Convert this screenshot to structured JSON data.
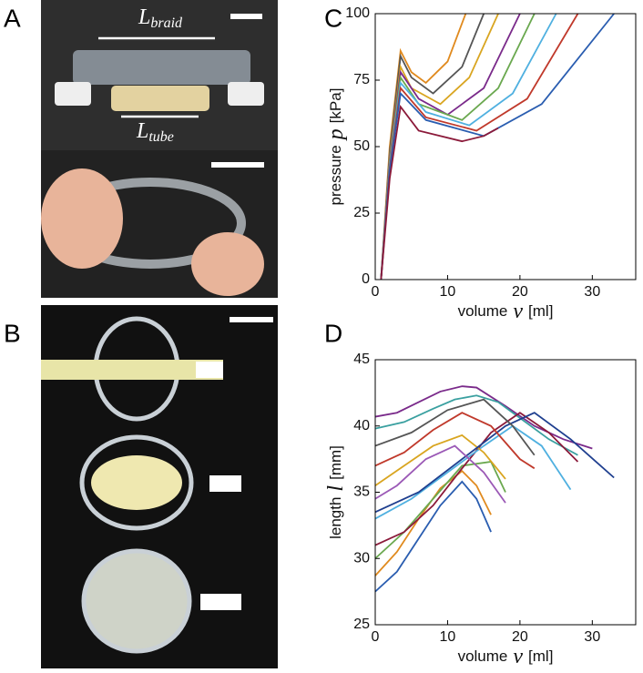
{
  "panel_labels": [
    "A",
    "B",
    "C",
    "D"
  ],
  "photo_labels": [
    {
      "symbol": "L",
      "subscript": "braid"
    },
    {
      "symbol": "L",
      "subscript": "tube"
    }
  ],
  "chart_data": [
    {
      "type": "line",
      "xlim": [
        0,
        36
      ],
      "ylim": [
        0,
        100
      ],
      "xticks": [
        0,
        10,
        20,
        30
      ],
      "yticks": [
        0,
        25,
        50,
        75,
        100
      ],
      "xlabel": {
        "text": "volume",
        "variable": "v",
        "unit": "[ml]"
      },
      "ylabel": {
        "text": "pressure",
        "variable": "p",
        "unit": "[kPa]"
      },
      "series": [
        {
          "color": "#e08a1e",
          "x": [
            0.8,
            2,
            3.5,
            5,
            7,
            10,
            12.5
          ],
          "values": [
            0,
            50,
            86,
            78,
            74,
            82,
            100
          ]
        },
        {
          "color": "#555555",
          "x": [
            0.8,
            2,
            3.5,
            5,
            8,
            12,
            15
          ],
          "values": [
            0,
            48,
            84,
            76,
            70,
            80,
            100
          ]
        },
        {
          "color": "#d9a520",
          "x": [
            0.8,
            2,
            3.5,
            5,
            9,
            13,
            17
          ],
          "values": [
            0,
            46,
            80,
            72,
            66,
            76,
            100
          ]
        },
        {
          "color": "#7a2a8a",
          "x": [
            0.8,
            2,
            3.5,
            6,
            10,
            15,
            20
          ],
          "values": [
            0,
            45,
            78,
            68,
            62,
            72,
            100
          ]
        },
        {
          "color": "#6aa84f",
          "x": [
            0.8,
            2,
            3.5,
            6,
            12,
            17,
            22
          ],
          "values": [
            0,
            44,
            76,
            66,
            60,
            72,
            100
          ]
        },
        {
          "color": "#4fb0e0",
          "x": [
            0.8,
            2,
            3.5,
            7,
            13,
            19,
            25
          ],
          "values": [
            0,
            43,
            74,
            63,
            58,
            70,
            100
          ]
        },
        {
          "color": "#c0392b",
          "x": [
            0.8,
            2,
            3.5,
            7,
            14,
            21,
            28
          ],
          "values": [
            0,
            42,
            72,
            61,
            56,
            68,
            100
          ]
        },
        {
          "color": "#2a5db0",
          "x": [
            0.8,
            2,
            3.5,
            7,
            15,
            23,
            33
          ],
          "values": [
            0,
            41,
            70,
            60,
            54,
            66,
            100
          ]
        },
        {
          "color": "#8b1a3a",
          "x": [
            0.8,
            2,
            3.5,
            6,
            12,
            15,
            17
          ],
          "values": [
            0,
            38,
            65,
            56,
            52,
            54,
            57
          ]
        }
      ]
    },
    {
      "type": "line",
      "xlim": [
        0,
        36
      ],
      "ylim": [
        25,
        45
      ],
      "xticks": [
        0,
        10,
        20,
        30
      ],
      "yticks": [
        25,
        30,
        35,
        40,
        45
      ],
      "xlabel": {
        "text": "volume",
        "variable": "v",
        "unit": "[ml]"
      },
      "ylabel": {
        "text": "length",
        "variable": "l",
        "unit": "[mm]"
      },
      "series": [
        {
          "color": "#7a2a8a",
          "x": [
            0,
            3,
            6,
            9,
            12,
            14,
            18,
            22,
            26,
            30
          ],
          "values": [
            40.7,
            41,
            41.8,
            42.6,
            43,
            42.9,
            41.5,
            40,
            39,
            38.3
          ]
        },
        {
          "color": "#3aa0a0",
          "x": [
            0,
            4,
            8,
            11,
            14,
            17,
            20,
            24,
            28
          ],
          "values": [
            39.8,
            40.3,
            41.3,
            42,
            42.3,
            41.8,
            40.6,
            39,
            37.8
          ]
        },
        {
          "color": "#2a5db0",
          "x": [
            0,
            3,
            6,
            9,
            12,
            14,
            16
          ],
          "values": [
            27.5,
            29,
            31.5,
            34,
            35.8,
            34.5,
            32
          ]
        },
        {
          "color": "#e08a1e",
          "x": [
            0,
            3,
            6,
            9,
            12,
            14,
            16
          ],
          "values": [
            28.7,
            30.5,
            33,
            35.3,
            36.6,
            35.5,
            33.3
          ]
        },
        {
          "color": "#6aa84f",
          "x": [
            0,
            4,
            8,
            12,
            16,
            18
          ],
          "values": [
            30,
            32,
            34.5,
            37,
            37.3,
            35
          ]
        },
        {
          "color": "#8b1a3a",
          "x": [
            0,
            4,
            8,
            12,
            16,
            20,
            24,
            28
          ],
          "values": [
            31,
            32,
            34,
            36.8,
            39.5,
            41,
            39.5,
            37.3
          ]
        },
        {
          "color": "#4fb0e0",
          "x": [
            0,
            5,
            10,
            15,
            19,
            23,
            27
          ],
          "values": [
            33,
            34.5,
            36.5,
            38.5,
            40,
            38.5,
            35.2
          ]
        },
        {
          "color": "#d9a520",
          "x": [
            0,
            4,
            8,
            12,
            15,
            18
          ],
          "values": [
            35.5,
            37,
            38.5,
            39.3,
            38,
            36
          ]
        },
        {
          "color": "#1f3f8f",
          "x": [
            0,
            6,
            12,
            18,
            22,
            27,
            33
          ],
          "values": [
            33.5,
            35,
            37.5,
            40,
            41,
            39,
            36.1
          ]
        },
        {
          "color": "#c0392b",
          "x": [
            0,
            4,
            8,
            12,
            16,
            20,
            22
          ],
          "values": [
            37,
            38,
            39.7,
            41,
            40,
            37.5,
            36.8
          ]
        },
        {
          "color": "#555555",
          "x": [
            0,
            5,
            10,
            15,
            19,
            22
          ],
          "values": [
            38.5,
            39.5,
            41.2,
            42,
            40,
            37.8
          ]
        },
        {
          "color": "#9b59b6",
          "x": [
            0,
            3,
            7,
            11,
            15,
            18
          ],
          "values": [
            34.5,
            35.5,
            37.5,
            38.5,
            36.5,
            34.2
          ]
        }
      ]
    }
  ]
}
